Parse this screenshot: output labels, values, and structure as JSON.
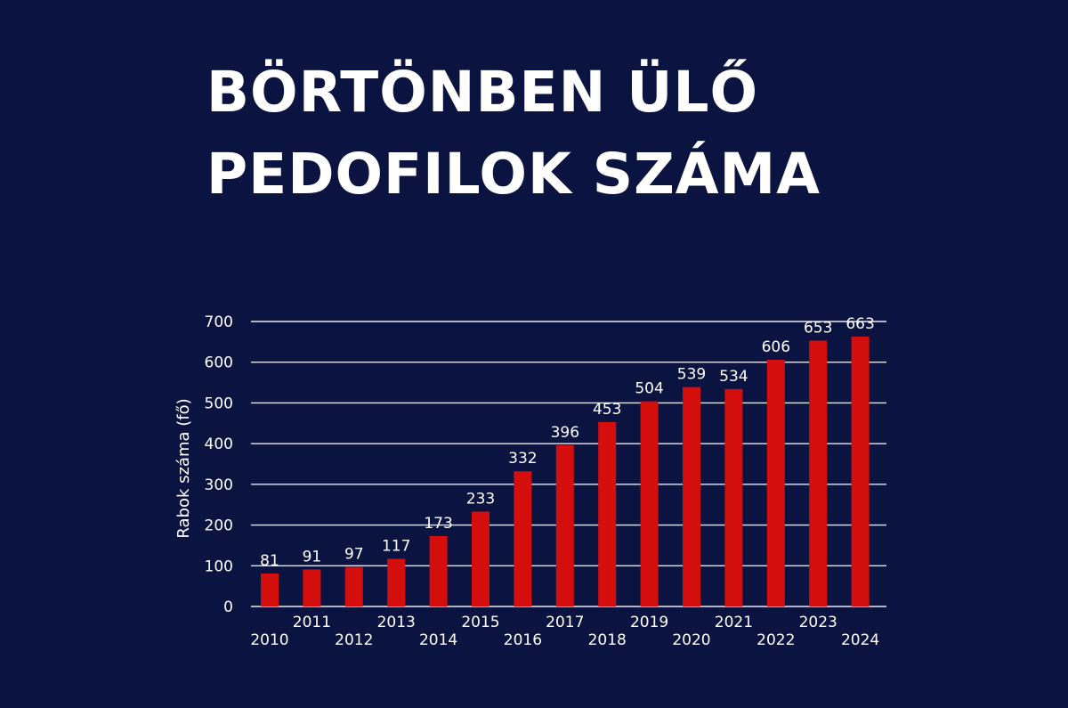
{
  "title": {
    "line1": "BÖRTÖNBEN ÜLŐ",
    "line2": "PEDOFILOK SZÁMA"
  },
  "chart_data": {
    "type": "bar",
    "title": "BÖRTÖNBEN ÜLŐ PEDOFILOK SZÁMA",
    "xlabel": "",
    "ylabel": "Rabok száma (fő)",
    "categories": [
      "2010",
      "2011",
      "2012",
      "2013",
      "2014",
      "2015",
      "2016",
      "2017",
      "2018",
      "2019",
      "2020",
      "2021",
      "2022",
      "2023",
      "2024"
    ],
    "values": [
      81,
      91,
      97,
      117,
      173,
      233,
      332,
      396,
      453,
      504,
      539,
      534,
      606,
      653,
      663
    ],
    "ylim": [
      0,
      700
    ],
    "yticks": [
      0,
      100,
      200,
      300,
      400,
      500,
      600,
      700
    ],
    "grid": true,
    "bar_color": "#d40d0d",
    "background_color": "#0b1440"
  }
}
